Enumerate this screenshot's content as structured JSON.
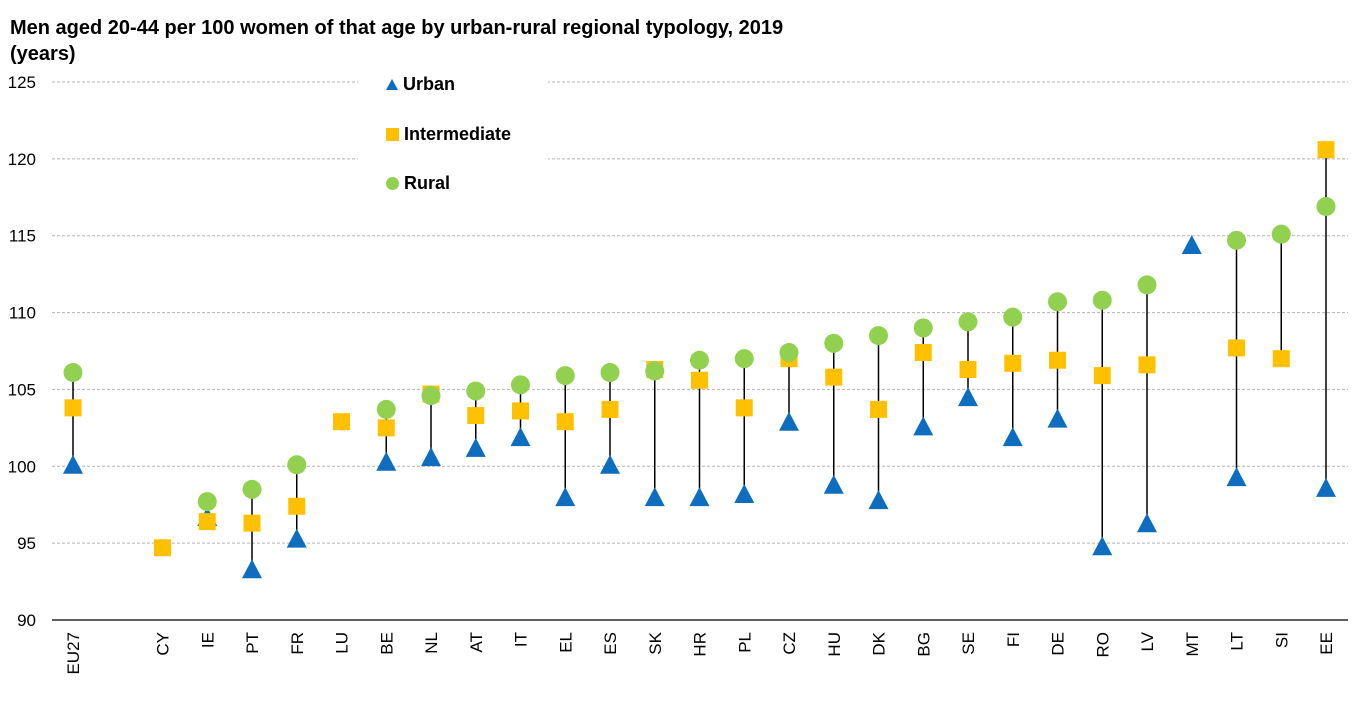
{
  "chart_data": {
    "type": "scatter",
    "title": "Men aged 20-44 per 100 women of that age by urban-rural regional typology, 2019",
    "subtitle": "(years)",
    "xlabel": "",
    "ylabel": "",
    "ylim": [
      90,
      125
    ],
    "yticks": [
      90,
      95,
      100,
      105,
      110,
      115,
      120,
      125
    ],
    "grid": true,
    "legend_position": "top-center",
    "categories": [
      "EU27",
      "",
      "CY",
      "IE",
      "PT",
      "FR",
      "LU",
      "BE",
      "NL",
      "AT",
      "IT",
      "EL",
      "ES",
      "SK",
      "HR",
      "PL",
      "CZ",
      "HU",
      "DK",
      "BG",
      "SE",
      "FI",
      "DE",
      "RO",
      "LV",
      "MT",
      "LT",
      "SI",
      "EE"
    ],
    "series": [
      {
        "name": "Urban",
        "marker": "triangle",
        "color": "#0E6DBE",
        "values": [
          100.0,
          null,
          null,
          96.6,
          93.2,
          95.2,
          null,
          100.2,
          100.5,
          101.1,
          101.8,
          97.9,
          100.0,
          97.9,
          97.9,
          98.1,
          102.8,
          98.7,
          97.7,
          102.5,
          104.4,
          101.8,
          103.0,
          94.7,
          96.2,
          114.3,
          99.2,
          null,
          98.5
        ]
      },
      {
        "name": "Intermediate",
        "marker": "square",
        "color": "#FFC000",
        "values": [
          103.8,
          null,
          94.7,
          96.4,
          96.3,
          97.4,
          102.9,
          102.5,
          104.7,
          103.3,
          103.6,
          102.9,
          103.7,
          106.3,
          105.6,
          103.8,
          107.0,
          105.8,
          103.7,
          107.4,
          106.3,
          106.7,
          106.9,
          105.9,
          106.6,
          null,
          107.7,
          107.0,
          120.6
        ]
      },
      {
        "name": "Rural",
        "marker": "circle",
        "color": "#92D050",
        "values": [
          106.1,
          null,
          null,
          97.7,
          98.5,
          100.1,
          null,
          103.7,
          104.6,
          104.9,
          105.3,
          105.9,
          106.1,
          106.2,
          106.9,
          107.0,
          107.4,
          108.0,
          108.5,
          109.0,
          109.4,
          109.7,
          110.7,
          110.8,
          111.8,
          null,
          114.7,
          115.1,
          116.9
        ]
      }
    ]
  }
}
